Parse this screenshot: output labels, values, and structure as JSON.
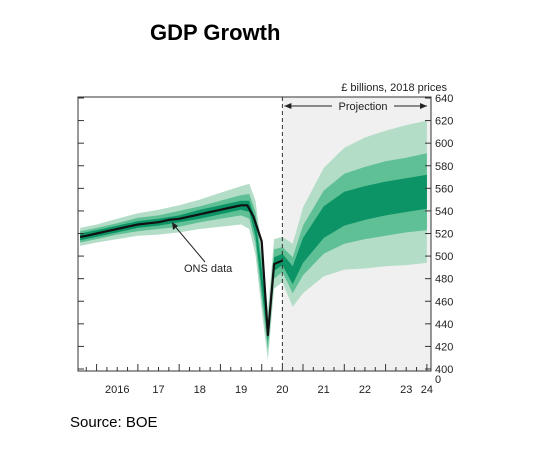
{
  "page": {
    "title": "GDP Growth",
    "source": "Source: BOE"
  },
  "chart_data": {
    "type": "area",
    "title": "GDP Growth",
    "ylabel": "£ billions, 2018 prices",
    "ylim": [
      400,
      640
    ],
    "yticks": [
      400,
      420,
      440,
      460,
      480,
      500,
      520,
      540,
      560,
      580,
      600,
      620,
      640
    ],
    "y_zero_label": "0",
    "xlim": [
      2015.55,
      2024.1
    ],
    "x_ticks": [
      {
        "label": "2016",
        "x": 2016.5
      },
      {
        "label": "17",
        "x": 2017.5
      },
      {
        "label": "18",
        "x": 2018.5
      },
      {
        "label": "19",
        "x": 2019.5
      },
      {
        "label": "20",
        "x": 2020.5
      },
      {
        "label": "21",
        "x": 2021.5
      },
      {
        "label": "22",
        "x": 2022.5
      },
      {
        "label": "23",
        "x": 2023.5
      },
      {
        "label": "24",
        "x": 2024.0
      }
    ],
    "projection_label": "Projection",
    "projection_start": 2020.5,
    "annotation": "ONS data",
    "colors": {
      "outer": "#b4ddc8",
      "middle": "#5fbf95",
      "inner": "#0c9467",
      "line": "#111111",
      "projection_bg": "#f0f0f0"
    },
    "series": [
      {
        "role": "ons-data",
        "x": [
          2015.6,
          2015.75,
          2016.0,
          2016.25,
          2016.5,
          2016.75,
          2017.0,
          2017.25,
          2017.5,
          2017.75,
          2018.0,
          2018.25,
          2018.5,
          2018.75,
          2019.0,
          2019.25,
          2019.5,
          2019.65,
          2019.8,
          2020.0,
          2020.15,
          2020.3,
          2020.5
        ],
        "y": [
          517,
          518,
          520,
          522,
          524,
          526,
          528,
          529,
          530,
          532,
          533,
          535,
          537,
          539,
          541,
          543,
          545,
          545,
          535,
          513,
          430,
          493,
          496
        ]
      }
    ],
    "fan": {
      "x": [
        2015.6,
        2016.0,
        2016.5,
        2017.0,
        2017.5,
        2018.0,
        2018.5,
        2019.0,
        2019.5,
        2019.7,
        2019.85,
        2020.0,
        2020.15,
        2020.3,
        2020.5,
        2020.75,
        2021.0,
        2021.5,
        2022.0,
        2022.5,
        2023.0,
        2023.5,
        2024.0
      ],
      "center": [
        517,
        520,
        524,
        528,
        530,
        533,
        537,
        541,
        545,
        544,
        525,
        480,
        430,
        493,
        497,
        483,
        505,
        530,
        542,
        547,
        551,
        554,
        557
      ],
      "inner_half": [
        3,
        3,
        3,
        3,
        3,
        3,
        4,
        4,
        4,
        5,
        7,
        9,
        6,
        6,
        5,
        8,
        11,
        14,
        15,
        15,
        15,
        15,
        15
      ],
      "middle_half": [
        5,
        5,
        5,
        6,
        6,
        7,
        7,
        8,
        9,
        11,
        14,
        18,
        13,
        13,
        11,
        16,
        22,
        28,
        31,
        32,
        33,
        33,
        34
      ],
      "outer_half": [
        8,
        8,
        9,
        10,
        11,
        12,
        13,
        15,
        17,
        20,
        24,
        28,
        22,
        22,
        20,
        28,
        38,
        48,
        54,
        58,
        60,
        62,
        63
      ]
    }
  }
}
